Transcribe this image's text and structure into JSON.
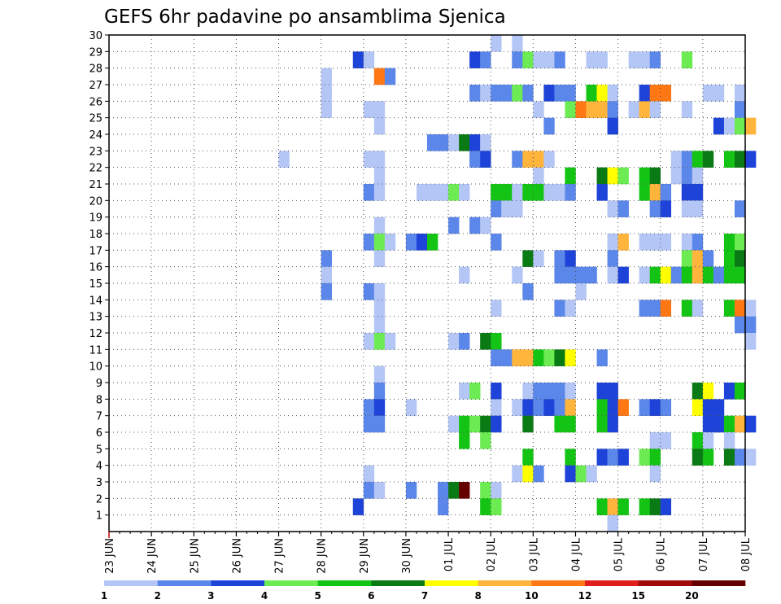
{
  "chart_data": {
    "type": "heatmap",
    "title": "GEFS 6hr padavine po ansamblima Sjenica",
    "x_ticks": [
      "23 JUN",
      "24 JUN",
      "25 JUN",
      "26 JUN",
      "27 JUN",
      "28 JUN",
      "29 JUN",
      "30 JUN",
      "01 JUL",
      "02 JUL",
      "03 JUL",
      "04 JUL",
      "05 JUL",
      "06 JUL",
      "07 JUL",
      "08 JUL"
    ],
    "x_unit": "6-hour step (4 per day)",
    "y_ticks": [
      "1",
      "2",
      "3",
      "4",
      "5",
      "6",
      "7",
      "8",
      "9",
      "10",
      "11",
      "12",
      "13",
      "14",
      "15",
      "16",
      "17",
      "18",
      "19",
      "20",
      "21",
      "22",
      "23",
      "24",
      "25",
      "26",
      "27",
      "28",
      "29",
      "30"
    ],
    "ylim": [
      0,
      30
    ],
    "legend_labels": [
      "1",
      "2",
      "3",
      "4",
      "5",
      "6",
      "7",
      "8",
      "10",
      "12",
      "15",
      "20"
    ],
    "legend_colors": [
      "#b4c6f5",
      "#5b87ea",
      "#1d43d9",
      "#6ceb52",
      "#14c414",
      "#0a7a14",
      "#ffff00",
      "#ffb43c",
      "#ff7814",
      "#e11e1e",
      "#a00a0a",
      "#640000"
    ],
    "cells": [
      [
        30,
        36,
        1
      ],
      [
        30,
        38,
        1
      ],
      [
        29,
        23,
        3
      ],
      [
        29,
        24,
        1
      ],
      [
        29,
        34,
        3
      ],
      [
        29,
        35,
        2
      ],
      [
        29,
        38,
        2
      ],
      [
        29,
        39,
        4
      ],
      [
        29,
        40,
        1
      ],
      [
        29,
        41,
        1
      ],
      [
        29,
        42,
        2
      ],
      [
        29,
        45,
        1
      ],
      [
        29,
        46,
        1
      ],
      [
        29,
        49,
        1
      ],
      [
        29,
        50,
        1
      ],
      [
        29,
        51,
        2
      ],
      [
        29,
        54,
        4
      ],
      [
        28,
        20,
        1
      ],
      [
        28,
        25,
        9
      ],
      [
        28,
        26,
        2
      ],
      [
        27,
        20,
        1
      ],
      [
        27,
        34,
        2
      ],
      [
        27,
        35,
        1
      ],
      [
        27,
        36,
        2
      ],
      [
        27,
        37,
        2
      ],
      [
        27,
        38,
        4
      ],
      [
        27,
        39,
        2
      ],
      [
        27,
        41,
        3
      ],
      [
        27,
        42,
        2
      ],
      [
        27,
        43,
        2
      ],
      [
        27,
        45,
        5
      ],
      [
        27,
        46,
        7
      ],
      [
        27,
        47,
        1
      ],
      [
        27,
        50,
        3
      ],
      [
        27,
        51,
        9
      ],
      [
        27,
        52,
        9
      ],
      [
        27,
        56,
        1
      ],
      [
        27,
        57,
        1
      ],
      [
        27,
        59,
        1
      ],
      [
        26,
        20,
        1
      ],
      [
        26,
        24,
        1
      ],
      [
        26,
        25,
        1
      ],
      [
        26,
        40,
        1
      ],
      [
        26,
        43,
        4
      ],
      [
        26,
        44,
        9
      ],
      [
        26,
        45,
        8
      ],
      [
        26,
        46,
        8
      ],
      [
        26,
        47,
        2
      ],
      [
        26,
        49,
        1
      ],
      [
        26,
        50,
        8
      ],
      [
        26,
        51,
        1
      ],
      [
        26,
        54,
        1
      ],
      [
        26,
        59,
        2
      ],
      [
        25,
        25,
        1
      ],
      [
        25,
        41,
        2
      ],
      [
        25,
        47,
        3
      ],
      [
        25,
        57,
        3
      ],
      [
        25,
        58,
        1
      ],
      [
        25,
        59,
        4
      ],
      [
        25,
        60,
        8
      ],
      [
        24,
        30,
        2
      ],
      [
        24,
        31,
        2
      ],
      [
        24,
        32,
        1
      ],
      [
        24,
        33,
        6
      ],
      [
        24,
        34,
        3
      ],
      [
        24,
        35,
        1
      ],
      [
        23,
        16,
        1
      ],
      [
        23,
        24,
        1
      ],
      [
        23,
        25,
        1
      ],
      [
        23,
        34,
        2
      ],
      [
        23,
        35,
        3
      ],
      [
        23,
        38,
        2
      ],
      [
        23,
        39,
        8
      ],
      [
        23,
        40,
        8
      ],
      [
        23,
        41,
        1
      ],
      [
        23,
        53,
        1
      ],
      [
        23,
        54,
        2
      ],
      [
        23,
        55,
        5
      ],
      [
        23,
        56,
        6
      ],
      [
        23,
        58,
        5
      ],
      [
        23,
        59,
        6
      ],
      [
        23,
        60,
        3
      ],
      [
        22,
        25,
        1
      ],
      [
        22,
        40,
        1
      ],
      [
        22,
        43,
        5
      ],
      [
        22,
        46,
        6
      ],
      [
        22,
        47,
        7
      ],
      [
        22,
        48,
        4
      ],
      [
        22,
        50,
        5
      ],
      [
        22,
        51,
        6
      ],
      [
        22,
        53,
        1
      ],
      [
        22,
        54,
        2
      ],
      [
        22,
        55,
        1
      ],
      [
        21,
        24,
        2
      ],
      [
        21,
        25,
        1
      ],
      [
        21,
        29,
        1
      ],
      [
        21,
        30,
        1
      ],
      [
        21,
        31,
        1
      ],
      [
        21,
        32,
        4
      ],
      [
        21,
        33,
        1
      ],
      [
        21,
        36,
        5
      ],
      [
        21,
        37,
        5
      ],
      [
        21,
        38,
        1
      ],
      [
        21,
        39,
        5
      ],
      [
        21,
        40,
        5
      ],
      [
        21,
        41,
        1
      ],
      [
        21,
        42,
        1
      ],
      [
        21,
        43,
        2
      ],
      [
        21,
        46,
        3
      ],
      [
        21,
        50,
        5
      ],
      [
        21,
        51,
        8
      ],
      [
        21,
        52,
        2
      ],
      [
        21,
        54,
        3
      ],
      [
        21,
        55,
        3
      ],
      [
        20,
        36,
        2
      ],
      [
        20,
        37,
        1
      ],
      [
        20,
        38,
        1
      ],
      [
        20,
        47,
        1
      ],
      [
        20,
        48,
        2
      ],
      [
        20,
        51,
        2
      ],
      [
        20,
        52,
        3
      ],
      [
        20,
        54,
        1
      ],
      [
        20,
        55,
        1
      ],
      [
        20,
        59,
        2
      ],
      [
        19,
        25,
        1
      ],
      [
        19,
        32,
        2
      ],
      [
        19,
        34,
        2
      ],
      [
        19,
        35,
        1
      ],
      [
        18,
        24,
        2
      ],
      [
        18,
        25,
        4
      ],
      [
        18,
        26,
        1
      ],
      [
        18,
        28,
        2
      ],
      [
        18,
        29,
        3
      ],
      [
        18,
        30,
        5
      ],
      [
        18,
        36,
        2
      ],
      [
        18,
        47,
        1
      ],
      [
        18,
        48,
        8
      ],
      [
        18,
        50,
        1
      ],
      [
        18,
        51,
        1
      ],
      [
        18,
        52,
        1
      ],
      [
        18,
        54,
        1
      ],
      [
        18,
        55,
        2
      ],
      [
        18,
        58,
        5
      ],
      [
        18,
        59,
        4
      ],
      [
        17,
        20,
        2
      ],
      [
        17,
        25,
        1
      ],
      [
        17,
        39,
        6
      ],
      [
        17,
        40,
        1
      ],
      [
        17,
        42,
        2
      ],
      [
        17,
        43,
        3
      ],
      [
        17,
        47,
        2
      ],
      [
        17,
        54,
        4
      ],
      [
        17,
        55,
        8
      ],
      [
        17,
        56,
        2
      ],
      [
        17,
        58,
        5
      ],
      [
        17,
        59,
        6
      ],
      [
        16,
        20,
        1
      ],
      [
        16,
        33,
        1
      ],
      [
        16,
        38,
        1
      ],
      [
        16,
        42,
        2
      ],
      [
        16,
        43,
        2
      ],
      [
        16,
        44,
        2
      ],
      [
        16,
        45,
        2
      ],
      [
        16,
        47,
        1
      ],
      [
        16,
        48,
        3
      ],
      [
        16,
        50,
        1
      ],
      [
        16,
        51,
        5
      ],
      [
        16,
        52,
        7
      ],
      [
        16,
        53,
        2
      ],
      [
        16,
        54,
        5
      ],
      [
        16,
        55,
        8
      ],
      [
        16,
        56,
        5
      ],
      [
        16,
        57,
        2
      ],
      [
        16,
        58,
        5
      ],
      [
        16,
        59,
        5
      ],
      [
        15,
        20,
        2
      ],
      [
        15,
        24,
        2
      ],
      [
        15,
        25,
        1
      ],
      [
        15,
        39,
        2
      ],
      [
        15,
        44,
        1
      ],
      [
        14,
        25,
        1
      ],
      [
        14,
        36,
        1
      ],
      [
        14,
        42,
        2
      ],
      [
        14,
        43,
        1
      ],
      [
        14,
        50,
        2
      ],
      [
        14,
        51,
        2
      ],
      [
        14,
        52,
        9
      ],
      [
        14,
        54,
        5
      ],
      [
        14,
        55,
        1
      ],
      [
        14,
        58,
        5
      ],
      [
        14,
        59,
        9
      ],
      [
        14,
        60,
        1
      ],
      [
        13,
        25,
        1
      ],
      [
        13,
        59,
        2
      ],
      [
        13,
        60,
        2
      ],
      [
        12,
        24,
        1
      ],
      [
        12,
        25,
        4
      ],
      [
        12,
        26,
        1
      ],
      [
        12,
        32,
        1
      ],
      [
        12,
        33,
        2
      ],
      [
        12,
        35,
        6
      ],
      [
        12,
        36,
        5
      ],
      [
        12,
        60,
        1
      ],
      [
        11,
        36,
        2
      ],
      [
        11,
        37,
        2
      ],
      [
        11,
        38,
        8
      ],
      [
        11,
        39,
        8
      ],
      [
        11,
        40,
        5
      ],
      [
        11,
        41,
        4
      ],
      [
        11,
        42,
        6
      ],
      [
        11,
        43,
        7
      ],
      [
        11,
        46,
        2
      ],
      [
        10,
        25,
        1
      ],
      [
        9,
        25,
        2
      ],
      [
        9,
        33,
        1
      ],
      [
        9,
        34,
        4
      ],
      [
        9,
        36,
        3
      ],
      [
        9,
        39,
        1
      ],
      [
        9,
        40,
        2
      ],
      [
        9,
        41,
        2
      ],
      [
        9,
        42,
        2
      ],
      [
        9,
        43,
        1
      ],
      [
        9,
        46,
        3
      ],
      [
        9,
        47,
        3
      ],
      [
        9,
        55,
        6
      ],
      [
        9,
        56,
        7
      ],
      [
        9,
        58,
        3
      ],
      [
        9,
        59,
        5
      ],
      [
        8,
        24,
        2
      ],
      [
        8,
        25,
        3
      ],
      [
        8,
        28,
        1
      ],
      [
        8,
        36,
        1
      ],
      [
        8,
        38,
        1
      ],
      [
        8,
        39,
        3
      ],
      [
        8,
        40,
        2
      ],
      [
        8,
        41,
        3
      ],
      [
        8,
        42,
        2
      ],
      [
        8,
        43,
        8
      ],
      [
        8,
        46,
        5
      ],
      [
        8,
        47,
        3
      ],
      [
        8,
        48,
        9
      ],
      [
        8,
        50,
        2
      ],
      [
        8,
        51,
        3
      ],
      [
        8,
        52,
        2
      ],
      [
        8,
        55,
        7
      ],
      [
        8,
        56,
        3
      ],
      [
        8,
        57,
        3
      ],
      [
        7,
        24,
        2
      ],
      [
        7,
        25,
        2
      ],
      [
        7,
        32,
        1
      ],
      [
        7,
        33,
        5
      ],
      [
        7,
        34,
        4
      ],
      [
        7,
        35,
        6
      ],
      [
        7,
        36,
        3
      ],
      [
        7,
        39,
        6
      ],
      [
        7,
        42,
        5
      ],
      [
        7,
        43,
        5
      ],
      [
        7,
        46,
        5
      ],
      [
        7,
        47,
        3
      ],
      [
        7,
        56,
        3
      ],
      [
        7,
        57,
        3
      ],
      [
        7,
        58,
        5
      ],
      [
        7,
        59,
        8
      ],
      [
        7,
        60,
        3
      ],
      [
        6,
        33,
        5
      ],
      [
        6,
        35,
        4
      ],
      [
        6,
        51,
        1
      ],
      [
        6,
        52,
        1
      ],
      [
        6,
        55,
        5
      ],
      [
        6,
        56,
        1
      ],
      [
        6,
        58,
        1
      ],
      [
        5,
        39,
        5
      ],
      [
        5,
        43,
        5
      ],
      [
        5,
        46,
        3
      ],
      [
        5,
        47,
        2
      ],
      [
        5,
        48,
        3
      ],
      [
        5,
        50,
        4
      ],
      [
        5,
        51,
        5
      ],
      [
        5,
        55,
        6
      ],
      [
        5,
        56,
        5
      ],
      [
        5,
        58,
        6
      ],
      [
        5,
        59,
        2
      ],
      [
        5,
        60,
        1
      ],
      [
        4,
        24,
        1
      ],
      [
        4,
        38,
        1
      ],
      [
        4,
        39,
        7
      ],
      [
        4,
        40,
        2
      ],
      [
        4,
        43,
        3
      ],
      [
        4,
        44,
        4
      ],
      [
        4,
        45,
        1
      ],
      [
        4,
        51,
        1
      ],
      [
        3,
        24,
        2
      ],
      [
        3,
        25,
        1
      ],
      [
        3,
        28,
        2
      ],
      [
        3,
        31,
        2
      ],
      [
        3,
        32,
        6
      ],
      [
        3,
        33,
        12
      ],
      [
        3,
        35,
        4
      ],
      [
        3,
        36,
        1
      ],
      [
        2,
        23,
        3
      ],
      [
        2,
        31,
        2
      ],
      [
        2,
        35,
        5
      ],
      [
        2,
        36,
        4
      ],
      [
        2,
        46,
        5
      ],
      [
        2,
        47,
        8
      ],
      [
        2,
        48,
        5
      ],
      [
        2,
        50,
        5
      ],
      [
        2,
        51,
        6
      ],
      [
        2,
        52,
        3
      ],
      [
        1,
        47,
        1
      ]
    ]
  }
}
